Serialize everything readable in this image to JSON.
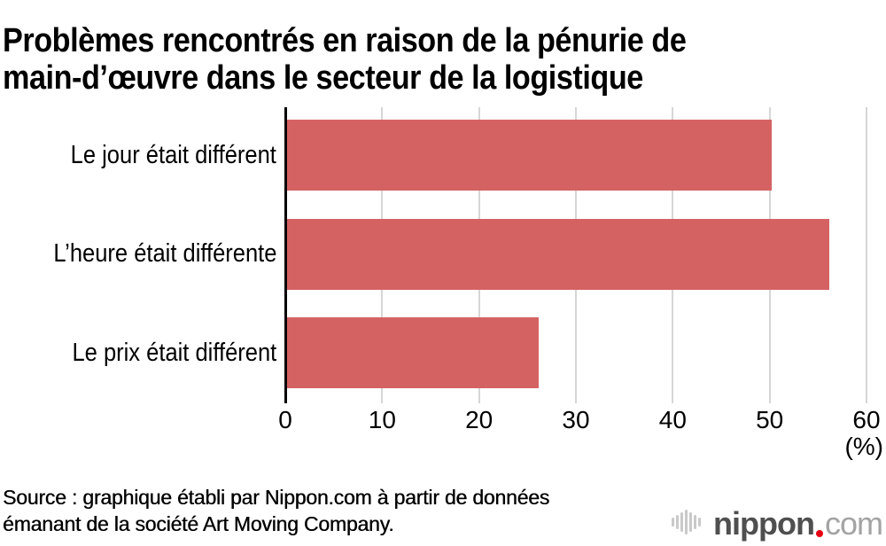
{
  "title": {
    "line1": "Problèmes rencontrés en raison de la pénurie de",
    "line2": "main-d’œuvre dans le secteur de la logistique"
  },
  "chart_data": {
    "type": "bar",
    "orientation": "horizontal",
    "categories": [
      "Le jour était différent",
      "L’heure était différente",
      "Le prix était différent"
    ],
    "values": [
      50,
      56,
      26
    ],
    "unit": "%",
    "xlabel": "(%)",
    "ylabel": "",
    "xlim": [
      0,
      60
    ],
    "x_ticks": [
      0,
      10,
      20,
      30,
      40,
      50,
      60
    ],
    "grid": true,
    "legend": false,
    "bar_color": "#d56263",
    "gridline_color": "#d6d6d6",
    "axis_color": "#000000"
  },
  "source": {
    "lines": [
      "Source : graphique établi par Nippon.com à partir de données",
      "émanant de la société Art Moving Company."
    ]
  },
  "logo": {
    "name": "nippon",
    "tld": "com",
    "icon_bar_heights": [
      10,
      16,
      22,
      28,
      22,
      16,
      10
    ],
    "colors": {
      "name": "#4f4f4f",
      "dot": "#e60012",
      "tld": "#a3a3a3",
      "icon_bars": "#c9c9c9"
    }
  }
}
